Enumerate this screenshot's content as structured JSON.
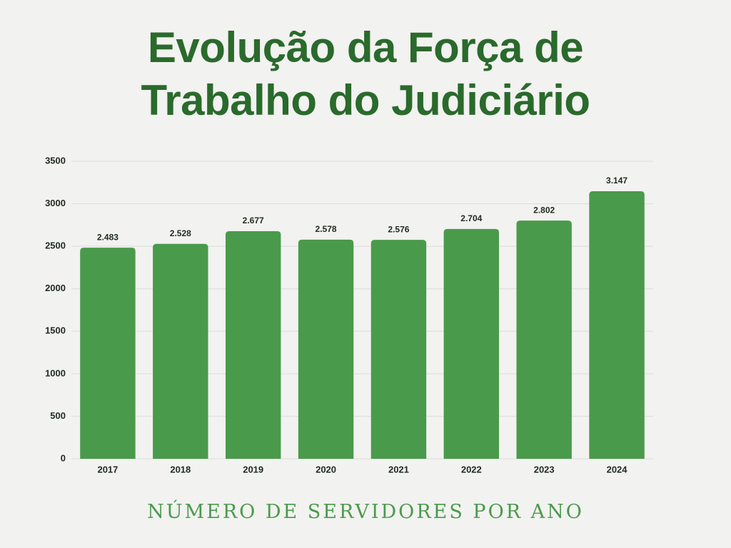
{
  "chart_data": {
    "type": "bar",
    "title": "Evolução da Força de Trabalho do Judiciário",
    "xlabel": "NÚMERO DE SERVIDORES POR ANO",
    "categories": [
      "2017",
      "2018",
      "2019",
      "2020",
      "2021",
      "2022",
      "2023",
      "2024"
    ],
    "values": [
      2483,
      2528,
      2677,
      2578,
      2576,
      2704,
      2802,
      3147
    ],
    "value_labels": [
      "2.483",
      "2.528",
      "2.677",
      "2.578",
      "2.576",
      "2.704",
      "2.802",
      "3.147"
    ],
    "color": "#4a9a4b",
    "ylim": [
      0,
      3500
    ],
    "yticks": [
      0,
      500,
      1000,
      1500,
      2000,
      2500,
      3000,
      3500
    ],
    "grid": true
  }
}
